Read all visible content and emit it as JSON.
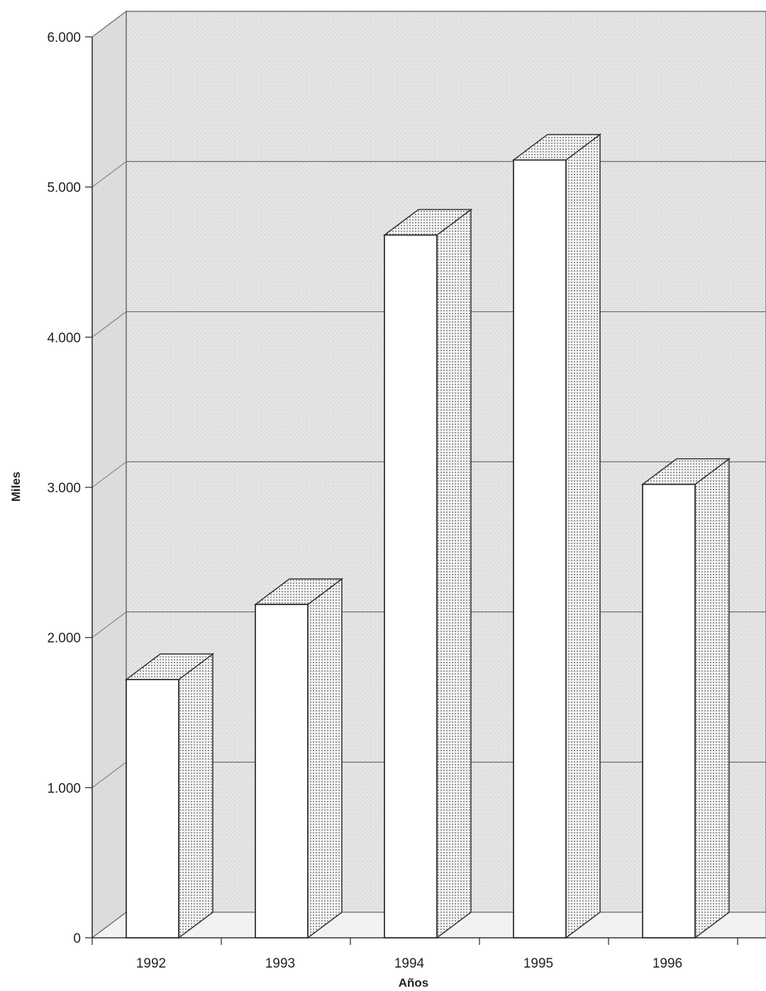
{
  "chart_data": {
    "type": "bar",
    "style": "3d-column",
    "categories": [
      "1992",
      "1993",
      "1994",
      "1995",
      "1996"
    ],
    "values": [
      1720,
      2220,
      4680,
      5180,
      3020
    ],
    "xlabel": "Años",
    "ylabel": "Miles",
    "ylim": [
      0,
      6000
    ],
    "yticks": [
      0,
      1000,
      2000,
      3000,
      4000,
      5000,
      6000
    ],
    "ytick_labels": [
      "0",
      "1.000",
      "2.000",
      "3.000",
      "4.000",
      "5.000",
      "6.000"
    ],
    "grid": true,
    "colors": {
      "bar_front": "#ffffff",
      "bar_stroke": "#333333",
      "wall": "#e6e6e6",
      "floor": "#f2f2f2"
    }
  }
}
